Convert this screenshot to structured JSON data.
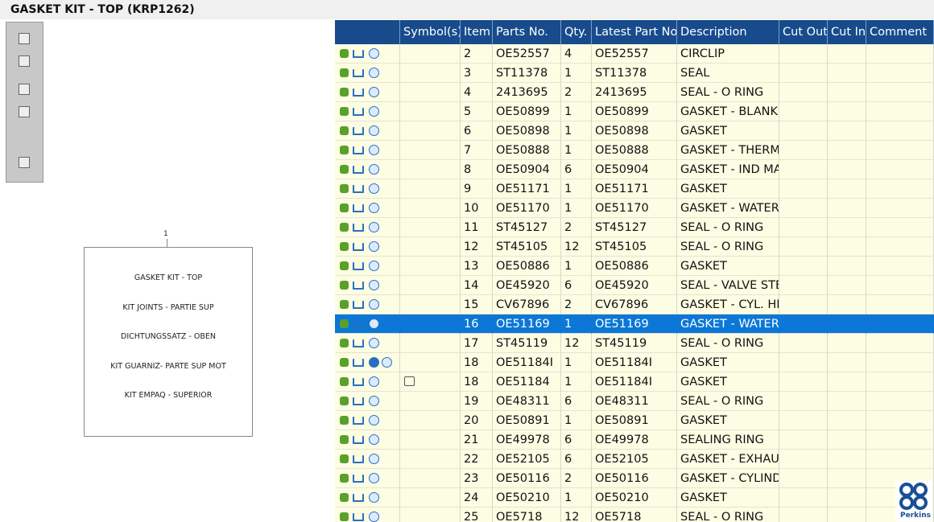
{
  "header": {
    "title": "GASKET KIT - TOP (KRP1262)"
  },
  "diagram": {
    "callout": "1",
    "lines": [
      "GASKET KIT - TOP",
      "KIT JOINTS - PARTIE SUP",
      "DICHTUNGSSATZ - OBEN",
      "KIT GUARNIZ- PARTE SUP MOT",
      "KIT EMPAQ - SUPERIOR"
    ]
  },
  "table": {
    "columns": [
      "Symbol(s)",
      "Item",
      "Parts No.",
      "Qty.",
      "Latest Part No.",
      "Description",
      "Cut Out",
      "Cut In",
      "Comment"
    ],
    "rows": [
      [
        "2",
        "OE52557",
        "4",
        "OE52557",
        "CIRCLIP"
      ],
      [
        "3",
        "ST11378",
        "1",
        "ST11378",
        "SEAL"
      ],
      [
        "4",
        "2413695",
        "2",
        "2413695",
        "SEAL - O RING"
      ],
      [
        "5",
        "OE50899",
        "1",
        "OE50899",
        "GASKET - BLANKIN"
      ],
      [
        "6",
        "OE50898",
        "1",
        "OE50898",
        "GASKET"
      ],
      [
        "7",
        "OE50888",
        "1",
        "OE50888",
        "GASKET - THERMO"
      ],
      [
        "8",
        "OE50904",
        "6",
        "OE50904",
        "GASKET - IND MAN"
      ],
      [
        "9",
        "OE51171",
        "1",
        "OE51171",
        "GASKET"
      ],
      [
        "10",
        "OE51170",
        "1",
        "OE51170",
        "GASKET - WATER I"
      ],
      [
        "11",
        "ST45127",
        "2",
        "ST45127",
        "SEAL - O RING"
      ],
      [
        "12",
        "ST45105",
        "12",
        "ST45105",
        "SEAL - O RING"
      ],
      [
        "13",
        "OE50886",
        "1",
        "OE50886",
        "GASKET"
      ],
      [
        "14",
        "OE45920",
        "6",
        "OE45920",
        "SEAL - VALVE STEM"
      ],
      [
        "15",
        "CV67896",
        "2",
        "CV67896",
        "GASKET - CYL. HEA"
      ],
      [
        "16",
        "OE51169",
        "1",
        "OE51169",
        "GASKET - WATER I"
      ],
      [
        "17",
        "ST45119",
        "12",
        "ST45119",
        "SEAL - O RING"
      ],
      [
        "18",
        "OE51184I",
        "1",
        "OE51184I",
        "GASKET"
      ],
      [
        "18",
        "OE51184",
        "1",
        "OE51184I",
        "GASKET"
      ],
      [
        "19",
        "OE48311",
        "6",
        "OE48311",
        "SEAL - O RING"
      ],
      [
        "20",
        "OE50891",
        "1",
        "OE50891",
        "GASKET"
      ],
      [
        "21",
        "OE49978",
        "6",
        "OE49978",
        "SEALING RING"
      ],
      [
        "22",
        "OE52105",
        "6",
        "OE52105",
        "GASKET - EXHAUS"
      ],
      [
        "23",
        "OE50116",
        "2",
        "OE50116",
        "GASKET - CYLINDE"
      ],
      [
        "24",
        "OE50210",
        "1",
        "OE50210",
        "GASKET"
      ],
      [
        "25",
        "OE5718",
        "12",
        "OE5718",
        "SEAL - O RING"
      ]
    ]
  },
  "logo": {
    "text": "Perkins"
  }
}
